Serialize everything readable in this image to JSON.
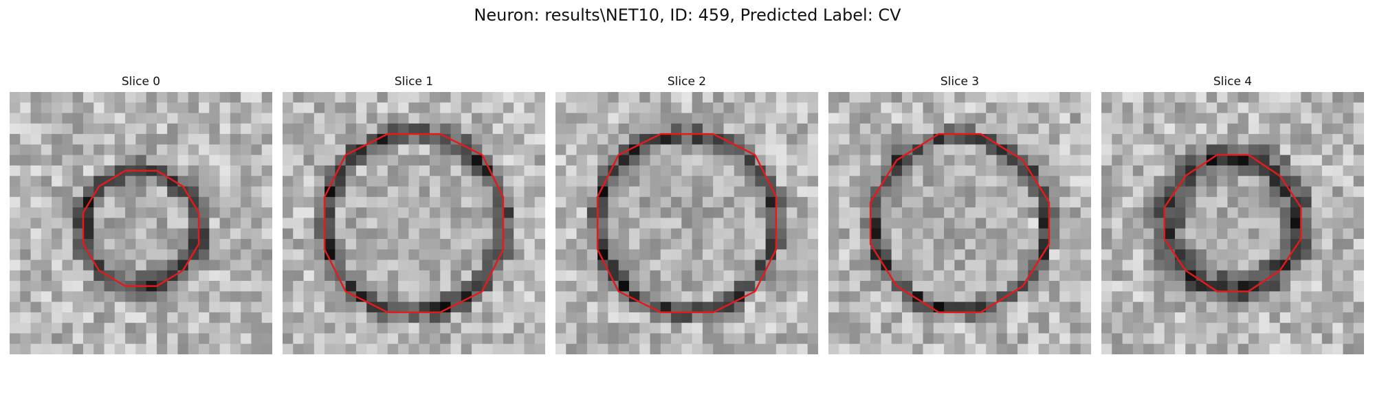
{
  "figure": {
    "title": "Neuron: results\\NET10, ID: 459, Predicted Label: CV"
  },
  "panels": [
    {
      "title": "Slice 0",
      "contour_color": "#e41a1c"
    },
    {
      "title": "Slice 1",
      "contour_color": "#e41a1c"
    },
    {
      "title": "Slice 2",
      "contour_color": "#e41a1c"
    },
    {
      "title": "Slice 3",
      "contour_color": "#e41a1c"
    },
    {
      "title": "Slice 4",
      "contour_color": "#e41a1c"
    }
  ],
  "colormap": "gray"
}
